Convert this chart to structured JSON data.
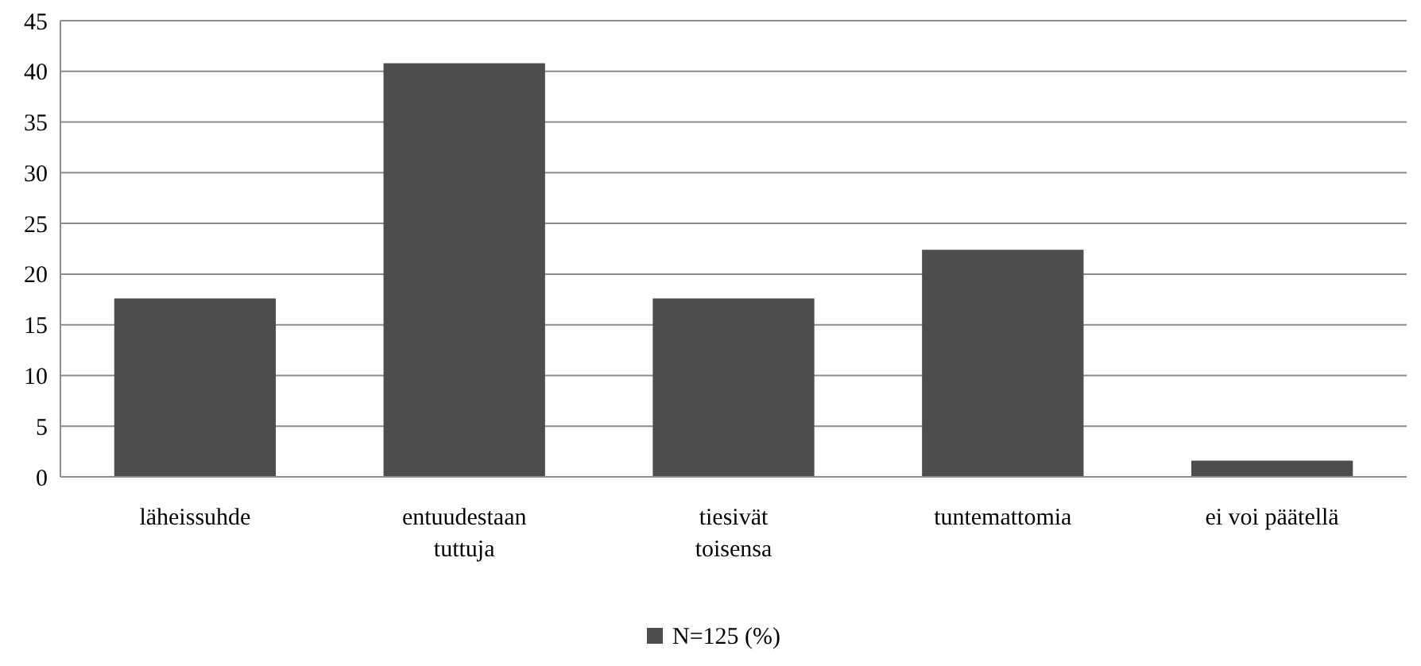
{
  "chart_data": {
    "type": "bar",
    "categories": [
      "läheissuhde",
      "entuudestaan tuttuja",
      "tiesivät toisensa",
      "tuntemattomia",
      "ei voi päätellä"
    ],
    "series": [
      {
        "name": "N=125 (%)",
        "color": "#4d4d4d",
        "values": [
          17.6,
          40.8,
          17.6,
          22.4,
          1.6
        ]
      }
    ],
    "ylim": [
      0,
      45
    ],
    "yticks": [
      0,
      5,
      10,
      15,
      20,
      25,
      30,
      35,
      40,
      45
    ],
    "grid": "y",
    "legend": "bottom"
  }
}
